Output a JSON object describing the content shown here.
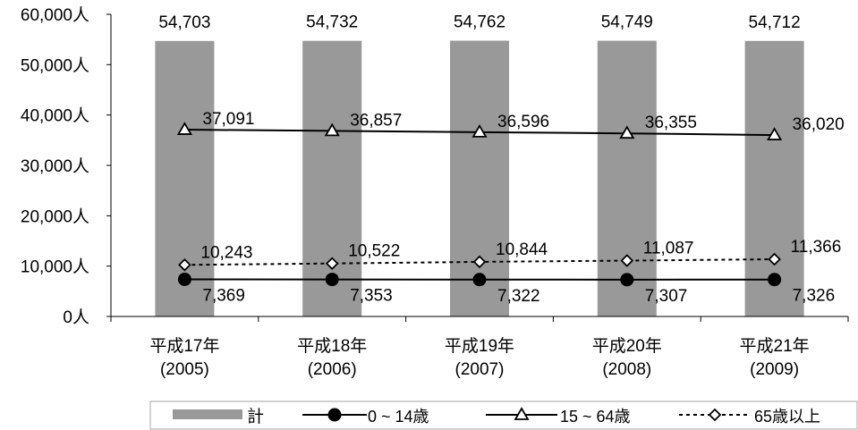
{
  "chart_data": {
    "type": "bar",
    "categories": [
      [
        "平成17年",
        "(2005)"
      ],
      [
        "平成18年",
        "(2006)"
      ],
      [
        "平成19年",
        "(2007)"
      ],
      [
        "平成20年",
        "(2008)"
      ],
      [
        "平成21年",
        "(2009)"
      ]
    ],
    "ylim": [
      0,
      60000
    ],
    "yticks": [
      0,
      10000,
      20000,
      30000,
      40000,
      50000,
      60000
    ],
    "ytick_labels": [
      "0人",
      "10,000人",
      "20,000人",
      "30,000人",
      "40,000人",
      "50,000人",
      "60,000人"
    ],
    "grid": false,
    "legend_position": "bottom-right",
    "series": [
      {
        "name": "計",
        "kind": "bar",
        "color": "#999999",
        "values": [
          54703,
          54732,
          54762,
          54749,
          54712
        ],
        "labels": [
          "54,703",
          "54,732",
          "54,762",
          "54,749",
          "54,712"
        ]
      },
      {
        "name": "0 ~ 14歳",
        "kind": "line",
        "marker": "circle",
        "line": "solid",
        "color": "#000000",
        "values": [
          7369,
          7353,
          7322,
          7307,
          7326
        ],
        "labels": [
          "7,369",
          "7,353",
          "7,322",
          "7,307",
          "7,326"
        ]
      },
      {
        "name": "15 ~ 64歳",
        "kind": "line",
        "marker": "triangle",
        "line": "solid",
        "color": "#000000",
        "values": [
          37091,
          36857,
          36596,
          36355,
          36020
        ],
        "labels": [
          "37,091",
          "36,857",
          "36,596",
          "36,355",
          "36,020"
        ]
      },
      {
        "name": "65歳以上",
        "kind": "line",
        "marker": "diamond",
        "line": "dotted",
        "color": "#000000",
        "values": [
          10243,
          10522,
          10844,
          11087,
          11366
        ],
        "labels": [
          "10,243",
          "10,522",
          "10,844",
          "11,087",
          "11,366"
        ]
      }
    ]
  }
}
